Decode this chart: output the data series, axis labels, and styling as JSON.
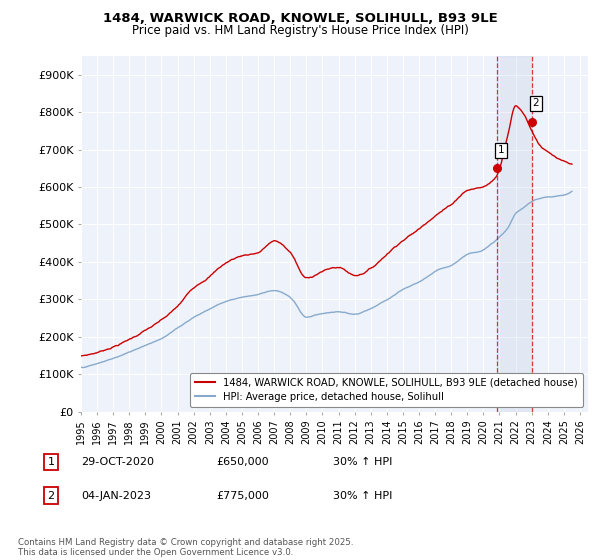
{
  "title_line1": "1484, WARWICK ROAD, KNOWLE, SOLIHULL, B93 9LE",
  "title_line2": "Price paid vs. HM Land Registry's House Price Index (HPI)",
  "ylabel_ticks": [
    "£0",
    "£100K",
    "£200K",
    "£300K",
    "£400K",
    "£500K",
    "£600K",
    "£700K",
    "£800K",
    "£900K"
  ],
  "ytick_vals": [
    0,
    100000,
    200000,
    300000,
    400000,
    500000,
    600000,
    700000,
    800000,
    900000
  ],
  "ylim": [
    0,
    950000
  ],
  "xlim_start": 1995,
  "xlim_end": 2026.5,
  "sale1_date": "29-OCT-2020",
  "sale1_price": 650000,
  "sale1_hpi": "30% ↑ HPI",
  "sale1_label": "1",
  "sale2_date": "04-JAN-2023",
  "sale2_price": 775000,
  "sale2_hpi": "30% ↑ HPI",
  "sale2_label": "2",
  "line1_color": "#cc0000",
  "line2_color": "#88aacc",
  "dashed_line_color": "#cc0000",
  "marker1_x": 2020.83,
  "marker1_y": 650000,
  "marker2_x": 2023.02,
  "marker2_y": 775000,
  "legend_label1": "1484, WARWICK ROAD, KNOWLE, SOLIHULL, B93 9LE (detached house)",
  "legend_label2": "HPI: Average price, detached house, Solihull",
  "footnote": "Contains HM Land Registry data © Crown copyright and database right 2025.\nThis data is licensed under the Open Government Licence v3.0.",
  "background_color": "#ffffff",
  "plot_bg_color": "#eef2fa"
}
